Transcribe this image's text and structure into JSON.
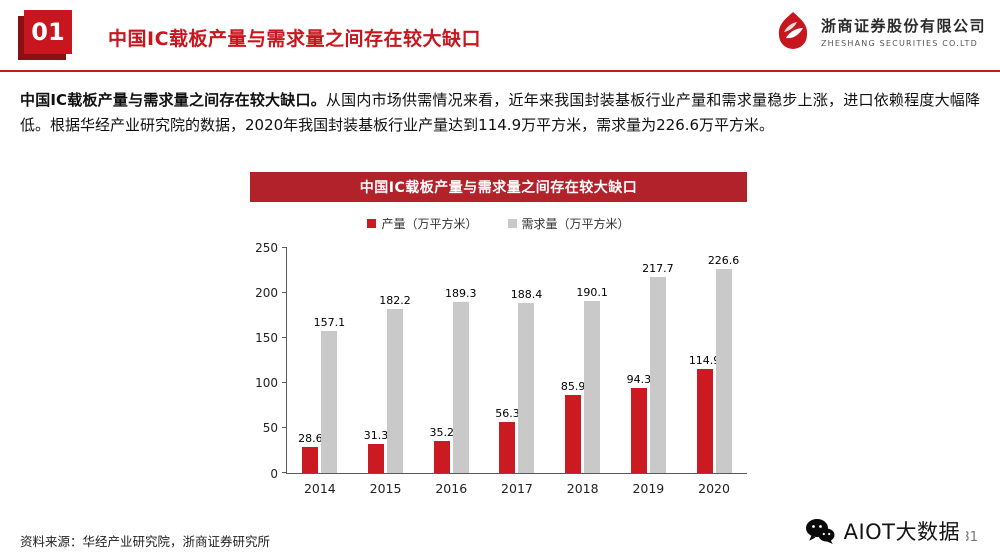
{
  "header": {
    "section_number": "01",
    "title": "中国IC载板产量与需求量之间存在较大缺口",
    "logo": {
      "company_cn": "浙商证券股份有限公司",
      "company_en": "ZHESHANG SECURITIES CO.LTD"
    }
  },
  "body": {
    "lead": "中国IC载板产量与需求量之间存在较大缺口。",
    "text": "从国内市场供需情况来看，近年来我国封装基板行业产量和需求量稳步上涨，进口依赖程度大幅降低。根据华经产业研究院的数据，2020年我国封装基板行业产量达到114.9万平方米，需求量为226.6万平方米。"
  },
  "chart_data": {
    "type": "bar",
    "title": "中国IC载板产量与需求量之间存在较大缺口",
    "categories": [
      "2014",
      "2015",
      "2016",
      "2017",
      "2018",
      "2019",
      "2020"
    ],
    "series": [
      {
        "name": "产量（万平方米）",
        "color": "#cc1a22",
        "values": [
          28.6,
          31.3,
          35.2,
          56.3,
          85.9,
          94.3,
          114.9
        ]
      },
      {
        "name": "需求量（万平方米）",
        "color": "#c9c9c9",
        "values": [
          157.1,
          182.2,
          189.3,
          188.4,
          190.1,
          217.7,
          226.6
        ]
      }
    ],
    "xlabel": "",
    "ylabel": "",
    "ylim": [
      0,
      250
    ],
    "yticks": [
      0,
      50,
      100,
      150,
      200,
      250
    ],
    "legend_position": "top",
    "grid": false,
    "title_bar_color": "#b2222b"
  },
  "footer": {
    "source": "资料来源：华经产业研究院，浙商证券研究所",
    "watermark": "AIOT大数据",
    "page_number": "31"
  },
  "colors": {
    "accent_red": "#c8161e"
  }
}
